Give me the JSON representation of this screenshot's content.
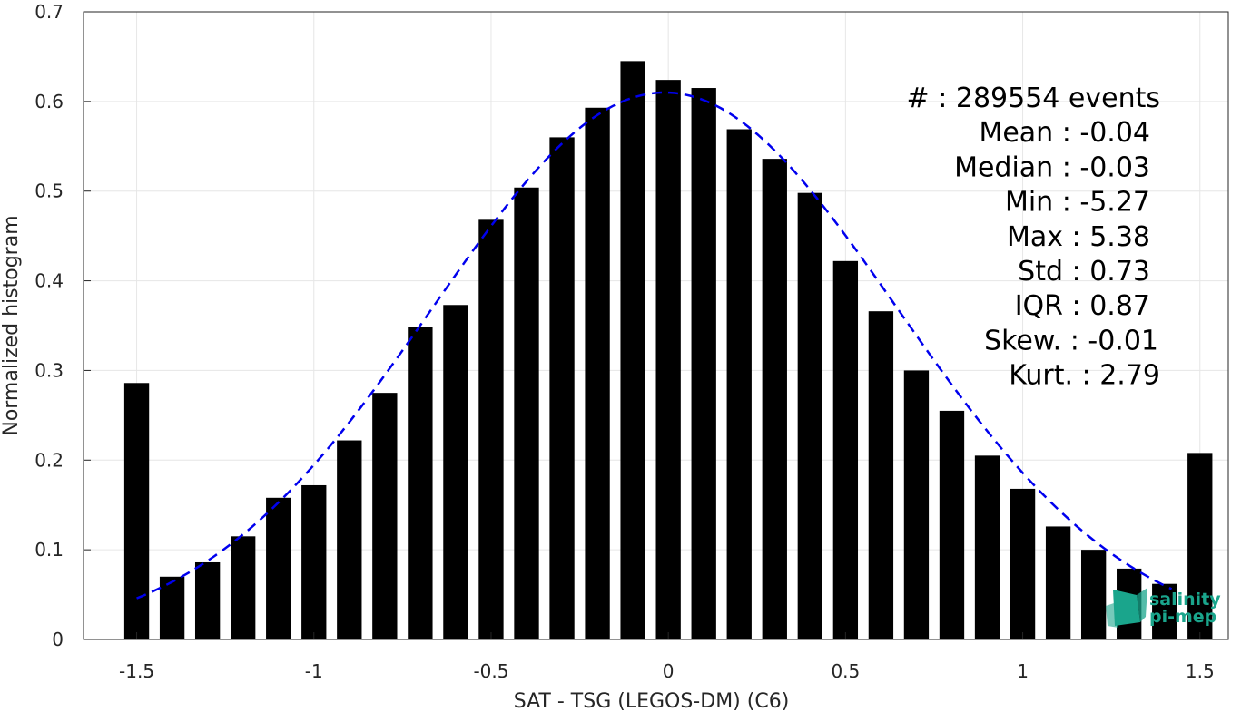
{
  "chart_data": {
    "type": "bar",
    "title": "",
    "xlabel": "SAT - TSG (LEGOS-DM) (C6)",
    "ylabel": "Normalized histogram",
    "xlim": [
      -1.5,
      1.5
    ],
    "ylim": [
      0,
      0.7
    ],
    "grid": true,
    "xticks": [
      -1.5,
      -1,
      -0.5,
      0,
      0.5,
      1,
      1.5
    ],
    "xtick_labels": [
      "-1.5",
      "-1",
      "-0.5",
      "0",
      "0.5",
      "1",
      "1.5"
    ],
    "yticks": [
      0,
      0.1,
      0.2,
      0.3,
      0.4,
      0.5,
      0.6,
      0.7
    ],
    "ytick_labels": [
      "0",
      "0.1",
      "0.2",
      "0.3",
      "0.4",
      "0.5",
      "0.6",
      "0.7"
    ],
    "bar_color": "#000000",
    "bin_centers": [
      -1.5,
      -1.4,
      -1.3,
      -1.2,
      -1.1,
      -1.0,
      -0.9,
      -0.8,
      -0.7,
      -0.6,
      -0.5,
      -0.4,
      -0.3,
      -0.2,
      -0.1,
      0.0,
      0.1,
      0.2,
      0.3,
      0.4,
      0.5,
      0.6,
      0.7,
      0.8,
      0.9,
      1.0,
      1.1,
      1.2,
      1.3,
      1.4,
      1.5
    ],
    "values": [
      0.286,
      0.07,
      0.086,
      0.115,
      0.158,
      0.172,
      0.222,
      0.275,
      0.348,
      0.373,
      0.468,
      0.504,
      0.56,
      0.593,
      0.645,
      0.624,
      0.615,
      0.569,
      0.536,
      0.498,
      0.422,
      0.366,
      0.3,
      0.255,
      0.205,
      0.168,
      0.126,
      0.1,
      0.079,
      0.062,
      0.208
    ],
    "fit_curve": {
      "style": "dashed",
      "color": "#0000ee",
      "mean": -0.01,
      "std": 0.655,
      "peak": 0.61,
      "x_range": [
        -1.5,
        1.42
      ]
    },
    "stats_box": [
      {
        "label": "#  : 289554 events"
      },
      {
        "label": "Mean : -0.04"
      },
      {
        "label": "Median : -0.03"
      },
      {
        "label": "Min : -5.27"
      },
      {
        "label": "Max : 5.38"
      },
      {
        "label": "Std : 0.73"
      },
      {
        "label": "IQR : 0.87"
      },
      {
        "label": "Skew. : -0.01"
      },
      {
        "label": "Kurt. : 2.79"
      }
    ]
  },
  "logo": {
    "line1": "salinity",
    "line2": "pi-mep",
    "color": "#1aa58c"
  }
}
